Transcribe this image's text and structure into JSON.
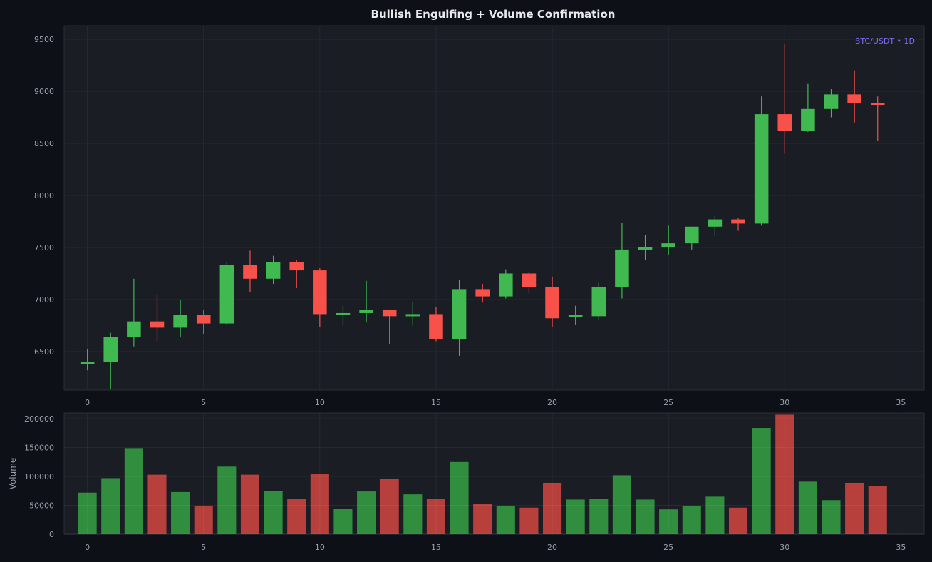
{
  "title": "Bullish Engulfing + Volume Confirmation",
  "symbol_tag": "BTC/USDT • 1D",
  "volume_ylabel": "Volume",
  "colors": {
    "up": "#3fb950",
    "down": "#f85149",
    "vol_up": "#318e3f",
    "vol_down": "#b8403c",
    "tag": "#7b6cf0",
    "background": "#0d1017",
    "panel": "#1a1d24"
  },
  "chart_data": [
    {
      "type": "candlestick",
      "title": "Bullish Engulfing + Volume Confirmation",
      "xlim": [
        -1,
        36
      ],
      "ylim": [
        6130,
        9630
      ],
      "x_ticks": [
        0,
        5,
        10,
        15,
        20,
        25,
        30,
        35
      ],
      "y_ticks": [
        6500,
        7000,
        7500,
        8000,
        8500,
        9000,
        9500
      ],
      "grid": true,
      "candles": [
        {
          "x": 0,
          "open": 6380,
          "high": 6520,
          "low": 6320,
          "close": 6400
        },
        {
          "x": 1,
          "open": 6400,
          "high": 6680,
          "low": 6140,
          "close": 6640
        },
        {
          "x": 2,
          "open": 6640,
          "high": 7200,
          "low": 6550,
          "close": 6790
        },
        {
          "x": 3,
          "open": 6790,
          "high": 7050,
          "low": 6600,
          "close": 6730
        },
        {
          "x": 4,
          "open": 6730,
          "high": 7000,
          "low": 6640,
          "close": 6850
        },
        {
          "x": 5,
          "open": 6850,
          "high": 6900,
          "low": 6670,
          "close": 6770
        },
        {
          "x": 6,
          "open": 6770,
          "high": 7360,
          "low": 6760,
          "close": 7330
        },
        {
          "x": 7,
          "open": 7330,
          "high": 7470,
          "low": 7070,
          "close": 7200
        },
        {
          "x": 8,
          "open": 7200,
          "high": 7420,
          "low": 7150,
          "close": 7360
        },
        {
          "x": 9,
          "open": 7360,
          "high": 7380,
          "low": 7110,
          "close": 7280
        },
        {
          "x": 10,
          "open": 7280,
          "high": 7300,
          "low": 6740,
          "close": 6860
        },
        {
          "x": 11,
          "open": 6860,
          "high": 6940,
          "low": 6750,
          "close": 6870
        },
        {
          "x": 12,
          "open": 6870,
          "high": 7180,
          "low": 6780,
          "close": 6900
        },
        {
          "x": 13,
          "open": 6900,
          "high": 6900,
          "low": 6570,
          "close": 6840
        },
        {
          "x": 14,
          "open": 6840,
          "high": 6980,
          "low": 6750,
          "close": 6860
        },
        {
          "x": 15,
          "open": 6860,
          "high": 6930,
          "low": 6600,
          "close": 6620
        },
        {
          "x": 16,
          "open": 6620,
          "high": 7190,
          "low": 6460,
          "close": 7100
        },
        {
          "x": 17,
          "open": 7100,
          "high": 7150,
          "low": 6970,
          "close": 7030
        },
        {
          "x": 18,
          "open": 7030,
          "high": 7290,
          "low": 7010,
          "close": 7250
        },
        {
          "x": 19,
          "open": 7250,
          "high": 7270,
          "low": 7060,
          "close": 7120
        },
        {
          "x": 20,
          "open": 7120,
          "high": 7220,
          "low": 6740,
          "close": 6820
        },
        {
          "x": 21,
          "open": 6830,
          "high": 6940,
          "low": 6760,
          "close": 6850
        },
        {
          "x": 22,
          "open": 6840,
          "high": 7160,
          "low": 6810,
          "close": 7120
        },
        {
          "x": 23,
          "open": 7120,
          "high": 7740,
          "low": 7010,
          "close": 7480
        },
        {
          "x": 24,
          "open": 7480,
          "high": 7620,
          "low": 7380,
          "close": 7500
        },
        {
          "x": 25,
          "open": 7500,
          "high": 7710,
          "low": 7430,
          "close": 7540
        },
        {
          "x": 26,
          "open": 7540,
          "high": 7700,
          "low": 7480,
          "close": 7700
        },
        {
          "x": 27,
          "open": 7700,
          "high": 7800,
          "low": 7610,
          "close": 7770
        },
        {
          "x": 28,
          "open": 7770,
          "high": 7780,
          "low": 7660,
          "close": 7730
        },
        {
          "x": 29,
          "open": 7730,
          "high": 8950,
          "low": 7710,
          "close": 8780
        },
        {
          "x": 30,
          "open": 8780,
          "high": 9460,
          "low": 8400,
          "close": 8620
        },
        {
          "x": 31,
          "open": 8620,
          "high": 9070,
          "low": 8610,
          "close": 8830
        },
        {
          "x": 32,
          "open": 8830,
          "high": 9020,
          "low": 8750,
          "close": 8970
        },
        {
          "x": 33,
          "open": 8970,
          "high": 9200,
          "low": 8700,
          "close": 8890
        },
        {
          "x": 34,
          "open": 8890,
          "high": 8950,
          "low": 8520,
          "close": 8870
        }
      ]
    },
    {
      "type": "bar",
      "ylabel": "Volume",
      "xlim": [
        -1,
        36
      ],
      "ylim": [
        0,
        210000
      ],
      "x_ticks": [
        0,
        5,
        10,
        15,
        20,
        25,
        30,
        35
      ],
      "y_ticks": [
        0,
        50000,
        100000,
        150000,
        200000
      ],
      "grid": true,
      "x": [
        0,
        1,
        2,
        3,
        4,
        5,
        6,
        7,
        8,
        9,
        10,
        11,
        12,
        13,
        14,
        15,
        16,
        17,
        18,
        19,
        20,
        21,
        22,
        23,
        24,
        25,
        26,
        27,
        28,
        29,
        30,
        31,
        32,
        33,
        34
      ],
      "values": [
        72000,
        97000,
        149000,
        103000,
        73000,
        49000,
        117000,
        103000,
        75000,
        61000,
        105000,
        44000,
        74000,
        96000,
        69000,
        61000,
        125000,
        53000,
        49000,
        46000,
        89000,
        60000,
        61000,
        102000,
        60000,
        43000,
        49000,
        65000,
        46000,
        184000,
        207000,
        91000,
        59000,
        89000,
        84000
      ]
    }
  ]
}
